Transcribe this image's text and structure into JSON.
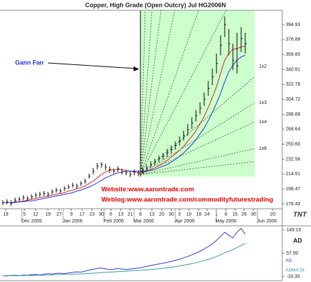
{
  "chart_data": {
    "type": "ohlc",
    "title": "Copper, High Grade (Open Outcry) Jul HG2006N",
    "annotations": {
      "gann": "Gann Fan",
      "website": "Website:www.aarontrade.com",
      "weblog": "Weblog:www.aarontrade.com/commodityfuturestrading",
      "logo": "TNT"
    },
    "fan_labels": [
      "1x2",
      "1x3",
      "1x4",
      "1x8"
    ],
    "color": "#000000",
    "high": [
      183,
      184,
      183,
      186,
      187,
      189,
      188,
      190,
      192,
      193,
      194,
      193,
      196,
      198,
      197,
      200,
      202,
      204,
      203,
      206,
      209,
      215,
      222,
      228,
      229,
      227,
      224,
      221,
      224,
      221,
      219,
      218,
      220,
      219,
      223,
      226,
      230,
      233,
      237,
      240,
      245,
      249,
      254,
      260,
      267,
      275,
      283,
      292,
      301,
      313,
      327,
      342,
      360,
      382,
      405,
      390,
      372,
      385,
      392,
      385
    ],
    "low": [
      177,
      178,
      176,
      180,
      181,
      183,
      182,
      184,
      186,
      187,
      188,
      187,
      190,
      192,
      191,
      194,
      196,
      198,
      197,
      200,
      203,
      209,
      214,
      220,
      222,
      219,
      216,
      215,
      217,
      214,
      213,
      211,
      213,
      212,
      215,
      218,
      222,
      225,
      229,
      232,
      235,
      239,
      244,
      249,
      255,
      261,
      269,
      278,
      287,
      297,
      309,
      322,
      336,
      358,
      380,
      358,
      340,
      336,
      362,
      360
    ],
    "close": [
      180,
      181,
      179,
      183,
      184,
      186,
      185,
      187,
      189,
      190,
      191,
      190,
      193,
      195,
      194,
      197,
      199,
      201,
      200,
      203,
      206,
      212,
      218,
      224,
      226,
      223,
      220,
      218,
      221,
      217,
      216,
      214,
      217,
      215,
      219,
      222,
      226,
      229,
      233,
      236,
      240,
      244,
      249,
      254,
      261,
      268,
      276,
      285,
      294,
      305,
      318,
      332,
      348,
      370,
      395,
      372,
      352,
      345,
      378,
      372
    ],
    "moving_averages": [
      {
        "color": "#e02020",
        "values": [
          180,
          180,
          180,
          181,
          181,
          182,
          183,
          184,
          185,
          186,
          187,
          188,
          189,
          190,
          191,
          192,
          194,
          195,
          197,
          198,
          200,
          203,
          206,
          210,
          214,
          217,
          219,
          220,
          220,
          220,
          219,
          218,
          217,
          216,
          217,
          218,
          220,
          222,
          225,
          228,
          231,
          235,
          239,
          243,
          248,
          254,
          260,
          267,
          275,
          284,
          295,
          307,
          320,
          336,
          352,
          360,
          365,
          366,
          368,
          369
        ]
      },
      {
        "color": "#2233dd",
        "values": [
          180,
          180,
          180,
          180,
          181,
          181,
          182,
          182,
          183,
          184,
          185,
          186,
          187,
          188,
          189,
          190,
          191,
          192,
          194,
          195,
          197,
          199,
          201,
          204,
          207,
          210,
          212,
          214,
          216,
          217,
          218,
          218,
          218,
          218,
          218,
          218,
          219,
          220,
          222,
          224,
          226,
          229,
          232,
          236,
          240,
          245,
          250,
          256,
          263,
          270,
          279,
          289,
          300,
          312,
          326,
          338,
          346,
          352,
          356,
          358
        ]
      }
    ],
    "xlim": [
      -0.67,
      68
    ],
    "xticks": [
      {
        "value": 0.7,
        "label": "19"
      },
      {
        "value": 5.3,
        "label": "5"
      },
      {
        "value": 8,
        "label": "12"
      },
      {
        "value": 11,
        "label": "19"
      },
      {
        "value": 13.7,
        "label": "27"
      },
      {
        "value": 16.7,
        "label": "9"
      },
      {
        "value": 19.3,
        "label": "17"
      },
      {
        "value": 21.7,
        "label": "23"
      },
      {
        "value": 24,
        "label": "30"
      },
      {
        "value": 26.3,
        "label": "6"
      },
      {
        "value": 28.7,
        "label": "13"
      },
      {
        "value": 31,
        "label": "21"
      },
      {
        "value": 33.5,
        "label": "8"
      },
      {
        "value": 36.3,
        "label": "13"
      },
      {
        "value": 38.7,
        "label": "20"
      },
      {
        "value": 41,
        "label": "30"
      },
      {
        "value": 43,
        "label": "3"
      },
      {
        "value": 45.3,
        "label": "10"
      },
      {
        "value": 47.7,
        "label": "18"
      },
      {
        "value": 49.7,
        "label": "24"
      },
      {
        "value": 52,
        "label": "1"
      },
      {
        "value": 54.3,
        "label": "8"
      },
      {
        "value": 56.5,
        "label": "15"
      },
      {
        "value": 58.7,
        "label": "26"
      },
      {
        "value": 61,
        "label": "30"
      },
      {
        "value": 65.7,
        "label": "20"
      }
    ],
    "month_labels": [
      {
        "value": 7,
        "label": "Dec 2005"
      },
      {
        "value": 17,
        "label": "Jan 2006"
      },
      {
        "value": 27,
        "label": "Feb 2006"
      },
      {
        "value": 34.3,
        "label": "Mar 2006"
      },
      {
        "value": 44.3,
        "label": "Apr 2006"
      },
      {
        "value": 54.3,
        "label": "May 2006"
      },
      {
        "value": 64.3,
        "label": "Jun 2006"
      }
    ],
    "ylim": [
      172.6,
      412.3
    ],
    "yticks": [
      394.93,
      376.89,
      358.85,
      340.81,
      322.76,
      304.72,
      286.68,
      268.64,
      {
        "value": 250.6,
        "label": "250.60"
      },
      232.56,
      214.51,
      196.47,
      178.43
    ],
    "grid": false,
    "indicator": {
      "title": "AD",
      "ylim": [
        -46.6,
        165
      ],
      "yticks": [
        149.15,
        {
          "value": 57.9,
          "label": "57.90"
        },
        -33.35
      ],
      "series": [
        {
          "name": "AD",
          "color": "#3333cc",
          "values": [
            -30,
            -31,
            -29,
            -28,
            -30,
            -27,
            -28,
            -26,
            -25,
            -27,
            -24,
            -22,
            -23,
            -21,
            -20,
            -22,
            -19,
            -17,
            -15,
            -16,
            -12,
            -8,
            -5,
            -2,
            0,
            -3,
            -6,
            -5,
            -2,
            -4,
            -6,
            -4,
            -2,
            0,
            3,
            6,
            10,
            13,
            16,
            19,
            22,
            26,
            30,
            34,
            40,
            45,
            52,
            58,
            66,
            74,
            84,
            94,
            108,
            124,
            140,
            128,
            118,
            140,
            155,
            132
          ]
        },
        {
          "name": "ADMA 28",
          "color": "#339999",
          "values": [
            -30,
            -30,
            -30,
            -30,
            -30,
            -29,
            -29,
            -29,
            -28,
            -28,
            -28,
            -27,
            -27,
            -26,
            -26,
            -25,
            -25,
            -24,
            -23,
            -23,
            -22,
            -21,
            -20,
            -19,
            -18,
            -17,
            -16,
            -15,
            -14,
            -13,
            -12,
            -11,
            -10,
            -9,
            -8,
            -7,
            -6,
            -4,
            -3,
            -1,
            1,
            3,
            5,
            8,
            11,
            14,
            17,
            21,
            25,
            29,
            34,
            39,
            45,
            52,
            60,
            66,
            72,
            80,
            88,
            96
          ]
        }
      ]
    }
  }
}
